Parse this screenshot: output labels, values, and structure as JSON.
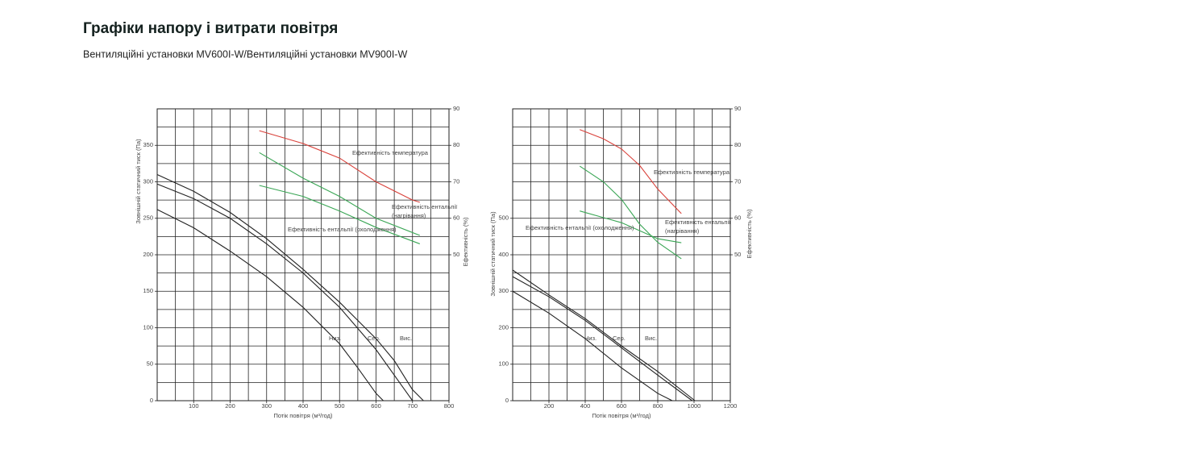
{
  "header": {
    "title": "Графіки напору і витрати повітря",
    "subtitle": "Вентиляційні установки MV600I-W/Вентиляційні установки MV900I-W"
  },
  "chart_data": [
    {
      "type": "line",
      "x_label": "Потік повітря (м³/год)",
      "y_label": "Зовнішній статичний тиск (Па)",
      "y2_label": "Ефективність (%)",
      "xlim": [
        0,
        800
      ],
      "xticks": [
        100,
        200,
        300,
        400,
        500,
        600,
        700,
        800
      ],
      "ylim": [
        0,
        400
      ],
      "yticks": [
        0,
        50,
        100,
        150,
        200,
        250,
        300,
        350
      ],
      "y2lim": [
        10,
        90
      ],
      "y2ticks": [
        50,
        60,
        70,
        80,
        90
      ],
      "grid": true,
      "xgrid_step": 50,
      "ygrid_step": 25,
      "series": [
        {
          "name": "Низ.",
          "color": "#222222",
          "x": [
            0,
            100,
            200,
            300,
            400,
            500,
            550,
            600,
            620
          ],
          "values": [
            262,
            237,
            205,
            170,
            128,
            78,
            45,
            10,
            0
          ]
        },
        {
          "name": "Сер.",
          "color": "#222222",
          "x": [
            0,
            100,
            200,
            300,
            400,
            500,
            600,
            650,
            700
          ],
          "values": [
            297,
            277,
            250,
            215,
            175,
            128,
            70,
            35,
            0
          ]
        },
        {
          "name": "Вис.",
          "color": "#222222",
          "x": [
            0,
            100,
            200,
            300,
            400,
            500,
            600,
            650,
            700,
            730
          ],
          "values": [
            310,
            287,
            258,
            222,
            180,
            135,
            85,
            55,
            15,
            0
          ]
        },
        {
          "name": "Ефективність температура",
          "color": "#d9413a",
          "axis": "y2",
          "x": [
            280,
            400,
            500,
            600,
            700,
            720
          ],
          "values": [
            84,
            80.5,
            76.5,
            70,
            65,
            64.4
          ]
        },
        {
          "name": "Ефективність ентальпії (нагрівання)",
          "color": "#3aa655",
          "axis": "y2",
          "x": [
            280,
            400,
            500,
            600,
            720
          ],
          "values": [
            78,
            71,
            66,
            60,
            55.3
          ]
        },
        {
          "name": "Ефективність ентальпії (охолодження)",
          "color": "#3aa655",
          "axis": "y2",
          "x": [
            280,
            400,
            500,
            600,
            720
          ],
          "values": [
            69,
            66,
            62,
            57.5,
            53
          ]
        }
      ]
    },
    {
      "type": "line",
      "x_label": "Потік повітря (м³/год)",
      "y_label": "Зовнішній статичний тиск (Па)",
      "y2_label": "Ефективність (%)",
      "xlim": [
        0,
        1200
      ],
      "xticks": [
        200,
        400,
        600,
        800,
        1000,
        1200
      ],
      "ylim": [
        0,
        800
      ],
      "yticks": [
        0,
        100,
        200,
        300,
        400,
        500
      ],
      "y2lim": [
        10,
        90
      ],
      "y2ticks": [
        50,
        60,
        70,
        80,
        90
      ],
      "grid": true,
      "xgrid_step": 100,
      "ygrid_step": 50,
      "series": [
        {
          "name": "Низ.",
          "color": "#222222",
          "x": [
            0,
            200,
            400,
            600,
            800,
            880
          ],
          "values": [
            300,
            240,
            170,
            90,
            20,
            0
          ]
        },
        {
          "name": "Сер.",
          "color": "#222222",
          "x": [
            0,
            200,
            400,
            600,
            800,
            990
          ],
          "values": [
            340,
            285,
            220,
            145,
            70,
            0
          ]
        },
        {
          "name": "Вис.",
          "color": "#222222",
          "x": [
            0,
            200,
            400,
            600,
            800,
            1005
          ],
          "values": [
            358,
            290,
            225,
            150,
            80,
            0
          ]
        },
        {
          "name": "Ефективність температура",
          "color": "#d9413a",
          "axis": "y2",
          "x": [
            370,
            500,
            600,
            700,
            800,
            930
          ],
          "values": [
            84.3,
            81.8,
            79,
            74.5,
            68,
            61.3
          ]
        },
        {
          "name": "Ефективність ентальпії (нагрівання)",
          "color": "#3aa655",
          "axis": "y2",
          "x": [
            370,
            500,
            600,
            700,
            800,
            930
          ],
          "values": [
            74.3,
            70,
            65.2,
            58.4,
            53.4,
            48.9
          ]
        },
        {
          "name": "Ефективність ентальпії (охолодження)",
          "color": "#3aa655",
          "axis": "y2",
          "x": [
            370,
            500,
            600,
            700,
            800,
            930
          ],
          "values": [
            62,
            60.2,
            58.8,
            56.6,
            54.4,
            53.3
          ]
        }
      ]
    }
  ]
}
